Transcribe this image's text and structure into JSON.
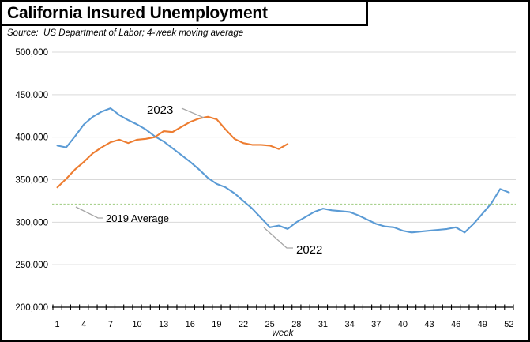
{
  "header": {
    "title": "California Insured Unemployment",
    "source_note": "Source:  US Department of Labor; 4-week moving average"
  },
  "chart_data": {
    "type": "line",
    "title": "California Insured Unemployment",
    "subtitle": "Source:  US Department of Labor; 4-week moving average",
    "grid": "horizontal",
    "legend_position": "inline-labels",
    "x_axis": {
      "title": "week",
      "min": 1,
      "max": 52,
      "tick_labels": [
        "1",
        "4",
        "7",
        "10",
        "13",
        "16",
        "19",
        "22",
        "25",
        "28",
        "31",
        "34",
        "37",
        "40",
        "43",
        "46",
        "49",
        "52"
      ]
    },
    "y_axis": {
      "min": 200000,
      "max": 500000,
      "tick_interval": 50000,
      "ticks": [
        {
          "label": "500,000",
          "value": 500000
        },
        {
          "label": "450,000",
          "value": 450000
        },
        {
          "label": "400,000",
          "value": 400000
        },
        {
          "label": "350,000",
          "value": 350000
        },
        {
          "label": "300,000",
          "value": 300000
        },
        {
          "label": "250,000",
          "value": 250000
        },
        {
          "label": "200,000",
          "value": 200000
        }
      ]
    },
    "reference_line": {
      "label": "2019 Average",
      "value": 321000,
      "color": "#A9D18E",
      "style": "dotted"
    },
    "series": [
      {
        "name": "2023",
        "color": "#ED7D31",
        "start_week": 1,
        "values": [
          341000,
          351000,
          362000,
          371000,
          381000,
          388000,
          394000,
          397000,
          393000,
          397000,
          398000,
          400000,
          407000,
          406000,
          412000,
          418000,
          422000,
          424000,
          421000,
          409000,
          398000,
          393000,
          391000,
          391000,
          390000,
          386000,
          392000
        ]
      },
      {
        "name": "2022",
        "color": "#5B9BD5",
        "start_week": 1,
        "values": [
          390000,
          388000,
          401000,
          415000,
          424000,
          430000,
          434000,
          426000,
          420000,
          415000,
          409000,
          401000,
          395000,
          387000,
          379000,
          371000,
          362000,
          352000,
          345000,
          341000,
          334000,
          325000,
          316000,
          305000,
          294000,
          296000,
          292000,
          300000,
          306000,
          312000,
          316000,
          314000,
          313000,
          312000,
          308000,
          303000,
          298000,
          295000,
          294000,
          290000,
          288000,
          289000,
          290000,
          291000,
          292000,
          294000,
          288000,
          298000,
          310000,
          322000,
          339000,
          335000
        ]
      }
    ],
    "colors": {
      "gridline": "#D9D9D9",
      "axis": "#000000",
      "leader_line": "#A6A6A6"
    }
  }
}
